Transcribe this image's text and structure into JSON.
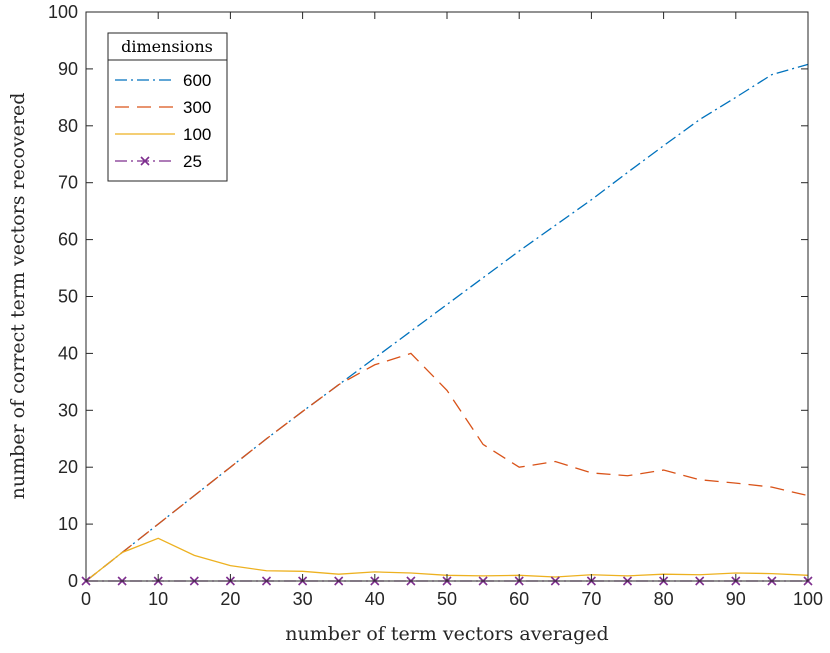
{
  "chart_data": {
    "type": "line",
    "xlabel": "number of term vectors averaged",
    "ylabel": "number of correct term vectors recovered",
    "xlim": [
      0,
      100
    ],
    "ylim": [
      0,
      100
    ],
    "xticks": [
      0,
      10,
      20,
      30,
      40,
      50,
      60,
      70,
      80,
      90,
      100
    ],
    "yticks": [
      0,
      10,
      20,
      30,
      40,
      50,
      60,
      70,
      80,
      90,
      100
    ],
    "grid": false,
    "legend": {
      "title": "dimensions",
      "placement": "top-left"
    },
    "x": [
      0,
      5,
      10,
      15,
      20,
      25,
      30,
      35,
      40,
      45,
      50,
      55,
      60,
      65,
      70,
      75,
      80,
      85,
      90,
      95,
      100
    ],
    "series": [
      {
        "name": "600",
        "color": "#0072BD",
        "style": "dashdot",
        "values": [
          0,
          5,
          10,
          15,
          20,
          25,
          29.8,
          34.5,
          39.2,
          43.9,
          48.6,
          53.3,
          58,
          62.5,
          67,
          71.8,
          76.5,
          81.1,
          85,
          89,
          90.8
        ]
      },
      {
        "name": "300",
        "color": "#D95319",
        "style": "dashed",
        "values": [
          0,
          5,
          10,
          15,
          20,
          25,
          29.8,
          34.5,
          38,
          40,
          33.5,
          24,
          20,
          21,
          19,
          18.5,
          19.5,
          17.8,
          17.2,
          16.5,
          15
        ]
      },
      {
        "name": "100",
        "color": "#EDB120",
        "style": "solid",
        "values": [
          0,
          5,
          7.5,
          4.5,
          2.7,
          1.8,
          1.7,
          1.2,
          1.6,
          1.4,
          1,
          0.9,
          1,
          0.7,
          1.1,
          0.9,
          1.2,
          1.1,
          1.4,
          1.3,
          1
        ]
      },
      {
        "name": "25",
        "color": "#7E2F8E",
        "style": "dashdot",
        "marker": "x",
        "values": [
          0,
          0,
          0,
          0,
          0,
          0,
          0,
          0,
          0,
          0,
          0,
          0,
          0,
          0,
          0,
          0,
          0,
          0,
          0,
          0,
          0
        ]
      }
    ]
  }
}
